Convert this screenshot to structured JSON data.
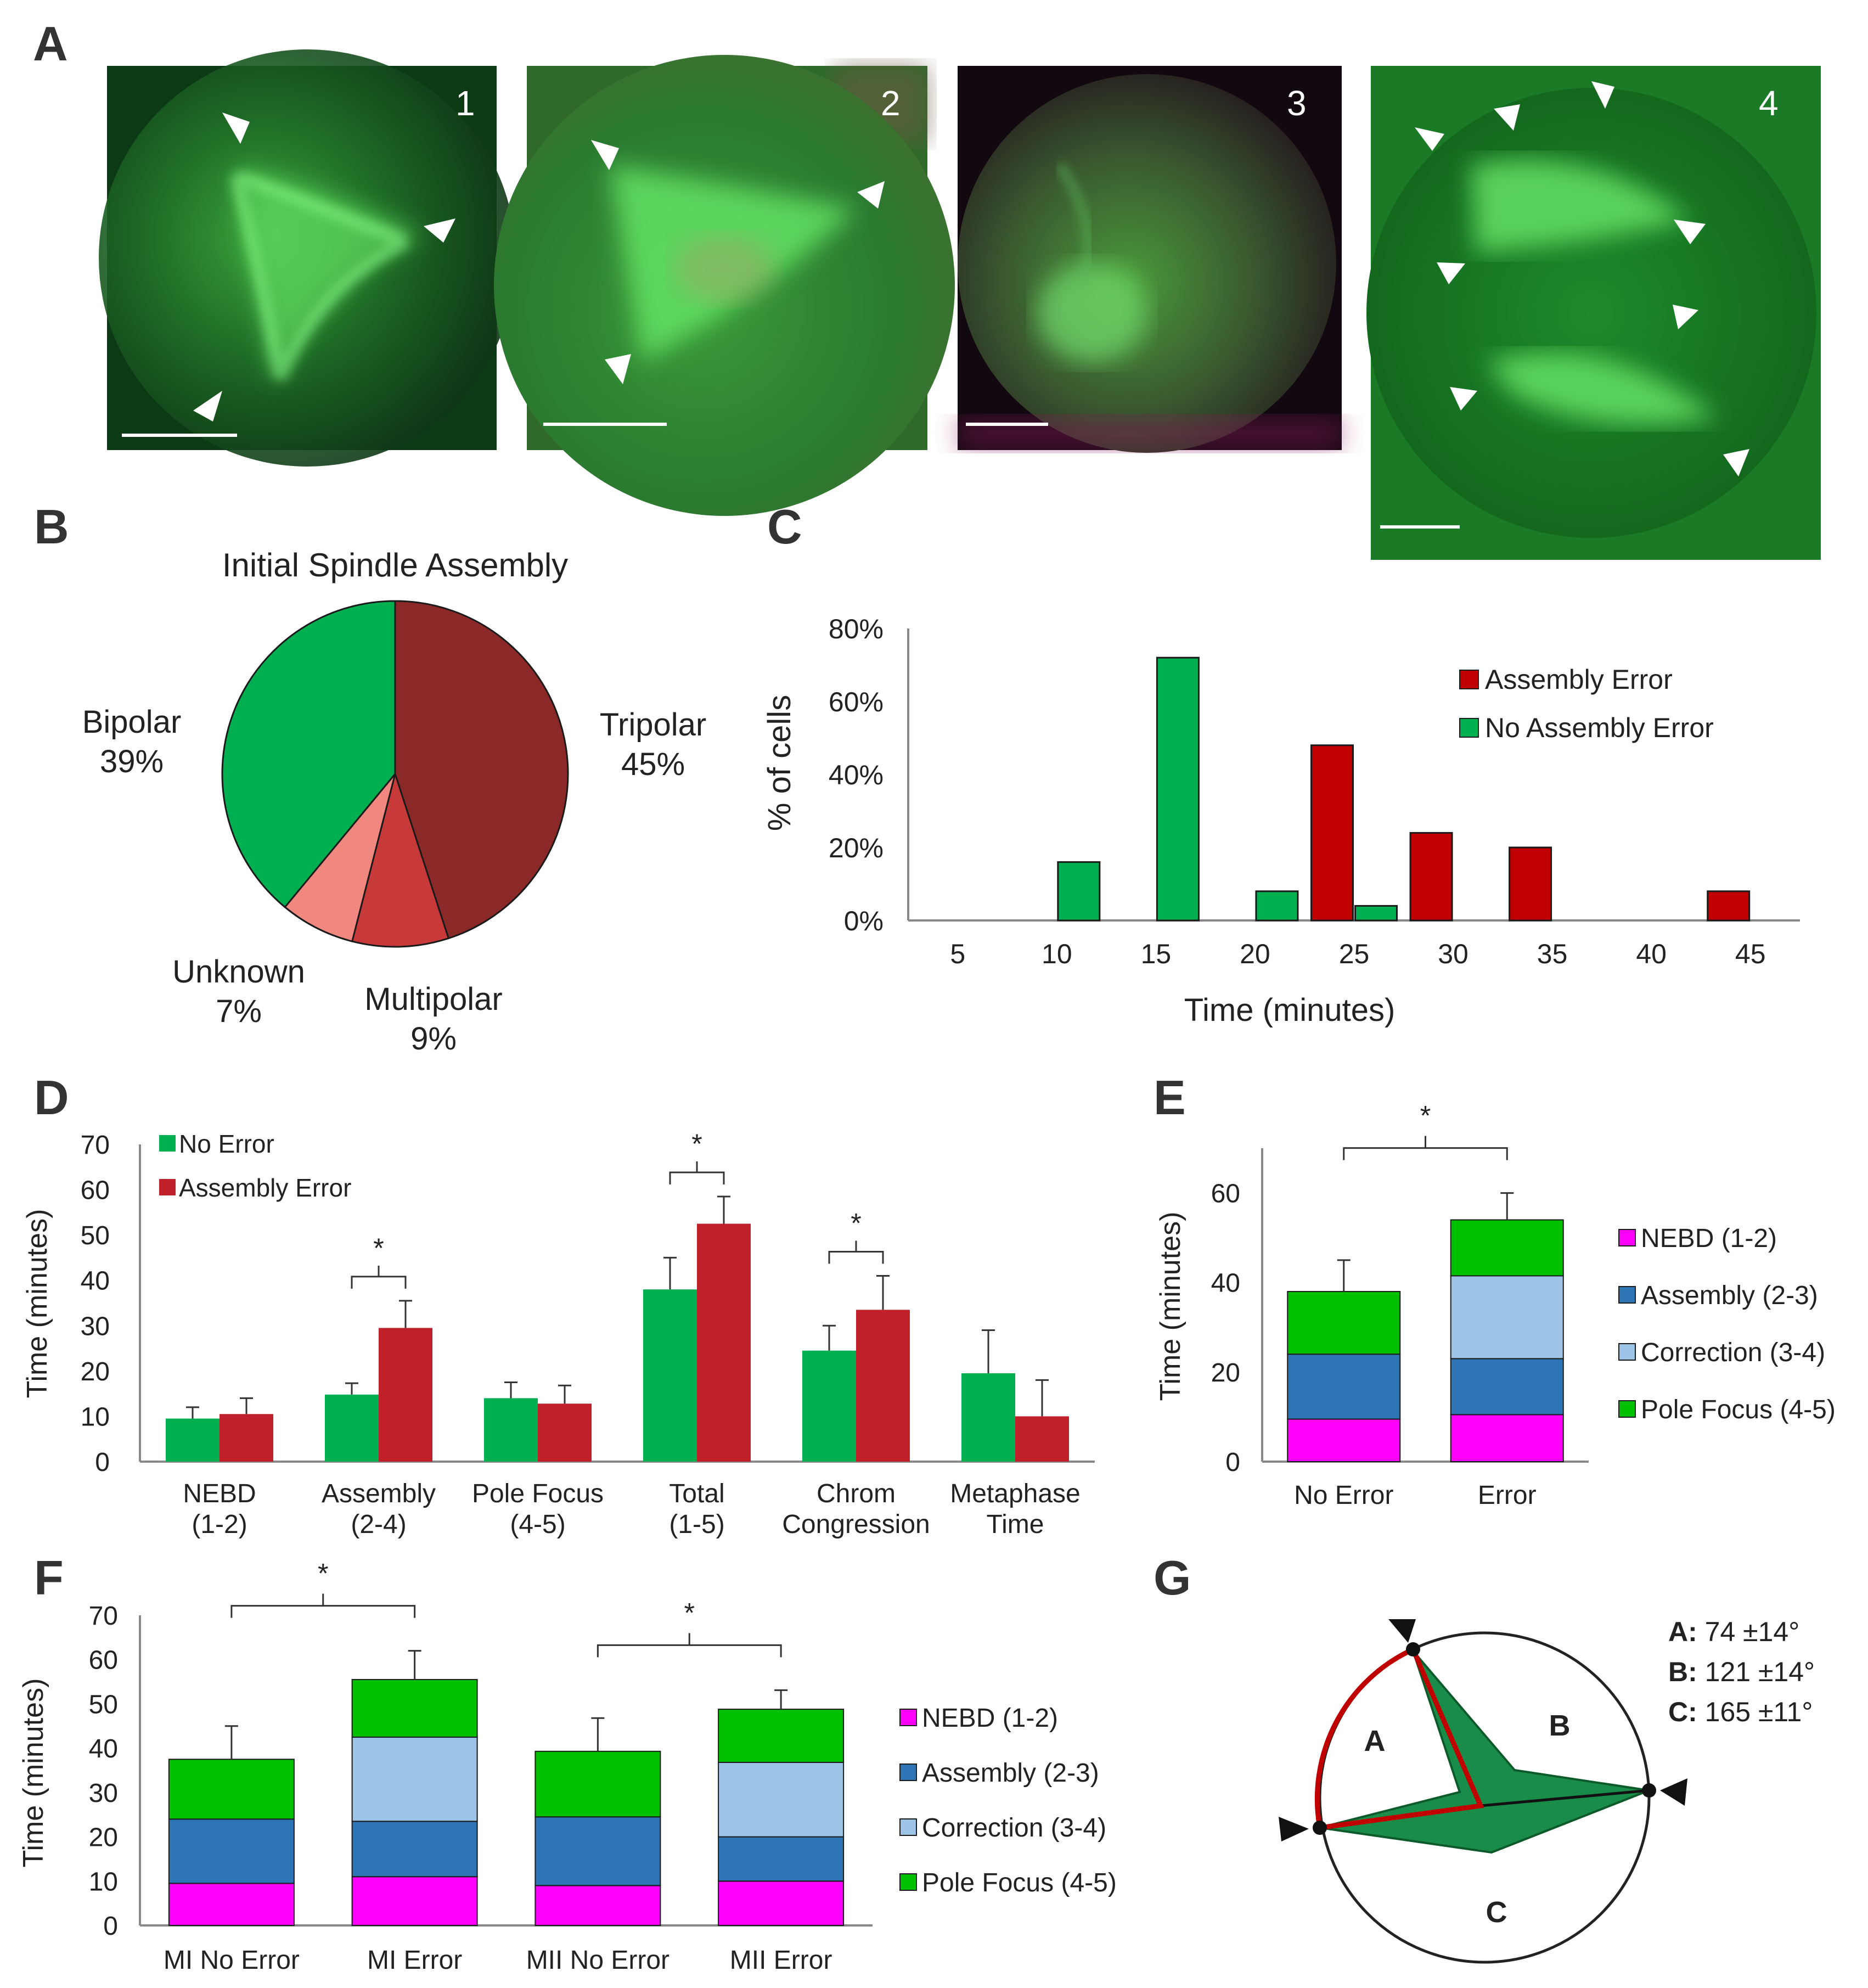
{
  "panel_letters": [
    "A",
    "B",
    "C",
    "D",
    "E",
    "F",
    "G"
  ],
  "micrographs": [
    {
      "number": "1"
    },
    {
      "number": "2"
    },
    {
      "number": "3"
    },
    {
      "number": "4"
    }
  ],
  "colors": {
    "green": "#00b050",
    "red_bar": "#c00000",
    "red_d": "#c0202a",
    "pie_tripolar": "#8b2828",
    "pie_multipolar": "#c83a3a",
    "pie_unknown": "#f08880",
    "pie_bipolar": "#00b050",
    "nebd": "#ff00ff",
    "assembly": "#2e75b6",
    "correction": "#9dc3e6",
    "pole_focus": "#00c000",
    "polygon_fill": "#1a8c4a",
    "arc_red": "#c00000"
  },
  "chart_data": [
    {
      "panel": "B",
      "type": "pie",
      "title": "Initial Spindle Assembly",
      "slices": [
        {
          "name": "Tripolar",
          "value": 45,
          "label": "45%",
          "color": "#8b2828"
        },
        {
          "name": "Multipolar",
          "value": 9,
          "label": "9%",
          "color": "#c83a3a"
        },
        {
          "name": "Unknown",
          "value": 7,
          "label": "7%",
          "color": "#f08880"
        },
        {
          "name": "Bipolar",
          "value": 39,
          "label": "39%",
          "color": "#00b050"
        }
      ]
    },
    {
      "panel": "C",
      "type": "bar",
      "xlabel": "Time (minutes)",
      "ylabel": "% of cells",
      "categories": [
        "5",
        "10",
        "15",
        "20",
        "25",
        "30",
        "35",
        "40",
        "45"
      ],
      "yticks": [
        "0%",
        "20%",
        "40%",
        "60%",
        "80%"
      ],
      "ylim": [
        0,
        80
      ],
      "legend_position": "top-right",
      "series": [
        {
          "name": "Assembly Error",
          "color": "#c00000",
          "values": [
            0,
            0,
            0,
            0,
            48,
            24,
            20,
            0,
            8
          ]
        },
        {
          "name": "No Assembly Error",
          "color": "#00b050",
          "values": [
            0,
            16,
            72,
            8,
            4,
            0,
            0,
            0,
            0
          ]
        }
      ],
      "draw_order": [
        "No Assembly Error",
        "Assembly Error"
      ]
    },
    {
      "panel": "D",
      "type": "bar",
      "ylabel": "Time (minutes)",
      "ylim": [
        0,
        70
      ],
      "yticks": [
        "0",
        "10",
        "20",
        "30",
        "40",
        "50",
        "60",
        "70"
      ],
      "legend_position": "top-left",
      "categories": [
        [
          "NEBD",
          "(1-2)"
        ],
        [
          "Assembly",
          "(2-4)"
        ],
        [
          "Pole Focus",
          "(4-5)"
        ],
        [
          "Total",
          "(1-5)"
        ],
        [
          "Chrom",
          "Congression"
        ],
        [
          "Metaphase",
          "Time"
        ]
      ],
      "series": [
        {
          "name": "No Error",
          "color": "#00b050",
          "values": [
            9.5,
            14.8,
            14,
            38,
            24.5,
            19.5
          ],
          "errors": [
            2.5,
            2.5,
            3.5,
            7,
            5.5,
            9.5
          ]
        },
        {
          "name": "Assembly Error",
          "color": "#c0202a",
          "values": [
            10.5,
            29.5,
            12.8,
            52.5,
            33.5,
            10
          ],
          "errors": [
            3.5,
            6,
            4,
            6,
            7.5,
            8
          ]
        }
      ],
      "significance": [
        {
          "category": 1,
          "label": "*"
        },
        {
          "category": 3,
          "label": "*"
        },
        {
          "category": 4,
          "label": "*"
        }
      ]
    },
    {
      "panel": "E",
      "type": "bar",
      "stacked": true,
      "ylabel": "Time (minutes)",
      "ylim": [
        0,
        70
      ],
      "yticks": [
        "0",
        "20",
        "40",
        "60"
      ],
      "categories": [
        "No Error",
        "Error"
      ],
      "legend_position": "right",
      "series": [
        {
          "name": "NEBD (1-2)",
          "color": "#ff00ff",
          "values": [
            9.5,
            10.5
          ]
        },
        {
          "name": "Assembly (2-3)",
          "color": "#2e75b6",
          "values": [
            14.5,
            12.5
          ]
        },
        {
          "name": "Correction (3-4)",
          "color": "#9dc3e6",
          "values": [
            0,
            18.5
          ]
        },
        {
          "name": "Pole Focus (4-5)",
          "color": "#00c000",
          "values": [
            14,
            12.5
          ]
        }
      ],
      "totals_error": [
        7,
        6
      ],
      "significance": [
        {
          "between": [
            0,
            1
          ],
          "label": "*"
        }
      ]
    },
    {
      "panel": "F",
      "type": "bar",
      "stacked": true,
      "ylabel": "Time (minutes)",
      "ylim": [
        0,
        70
      ],
      "yticks": [
        "0",
        "10",
        "20",
        "30",
        "40",
        "50",
        "60",
        "70"
      ],
      "categories": [
        "MI No Error",
        "MI Error",
        "MII No Error",
        "MII Error"
      ],
      "legend_position": "right",
      "series": [
        {
          "name": "NEBD (1-2)",
          "color": "#ff00ff",
          "values": [
            9.5,
            11,
            9,
            10
          ]
        },
        {
          "name": "Assembly (2-3)",
          "color": "#2e75b6",
          "values": [
            14.5,
            12.5,
            15.5,
            10
          ]
        },
        {
          "name": "Correction (3-4)",
          "color": "#9dc3e6",
          "values": [
            0,
            19,
            0,
            16.8
          ]
        },
        {
          "name": "Pole Focus (4-5)",
          "color": "#00c000",
          "values": [
            13.5,
            13,
            14.8,
            12
          ]
        }
      ],
      "totals_error": [
        7.5,
        6.5,
        7.5,
        4.3
      ],
      "significance": [
        {
          "between": [
            0,
            1
          ],
          "label": "*"
        },
        {
          "between": [
            2,
            3
          ],
          "label": "*"
        }
      ]
    }
  ],
  "diagram_g": {
    "region_labels": [
      "A",
      "B",
      "C"
    ],
    "angles": [
      {
        "key": "A:",
        "value": " 74 ±14°"
      },
      {
        "key": "B:",
        "value": " 121 ±14°"
      },
      {
        "key": "C:",
        "value": " 165 ±11°"
      }
    ]
  }
}
